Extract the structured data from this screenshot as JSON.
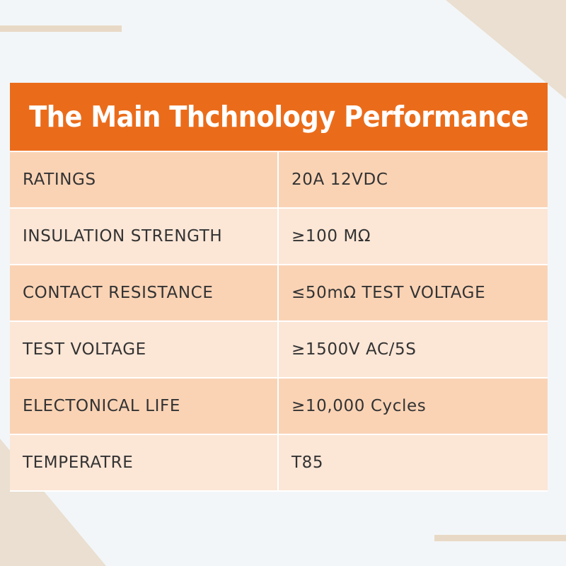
{
  "title": "The Main Thchnology Performance",
  "specs": [
    {
      "parameter": "RATINGS",
      "value": "20A 12VDC"
    },
    {
      "parameter": "INSULATION STRENGTH",
      "value": "≥100 MΩ"
    },
    {
      "parameter": "CONTACT RESISTANCE",
      "value": "≤50mΩ TEST VOLTAGE"
    },
    {
      "parameter": "TEST VOLTAGE",
      "value": "≥1500V AC/5S"
    },
    {
      "parameter": "ELECTONICAL LIFE",
      "value": "≥10,000 Cycles"
    },
    {
      "parameter": "TEMPERATRE",
      "value": "T85"
    }
  ],
  "colors": {
    "header": "#ea6c1b",
    "row_dark": "#fad3b5",
    "row_light": "#fce6d6",
    "decor": "#e8d9c6"
  }
}
